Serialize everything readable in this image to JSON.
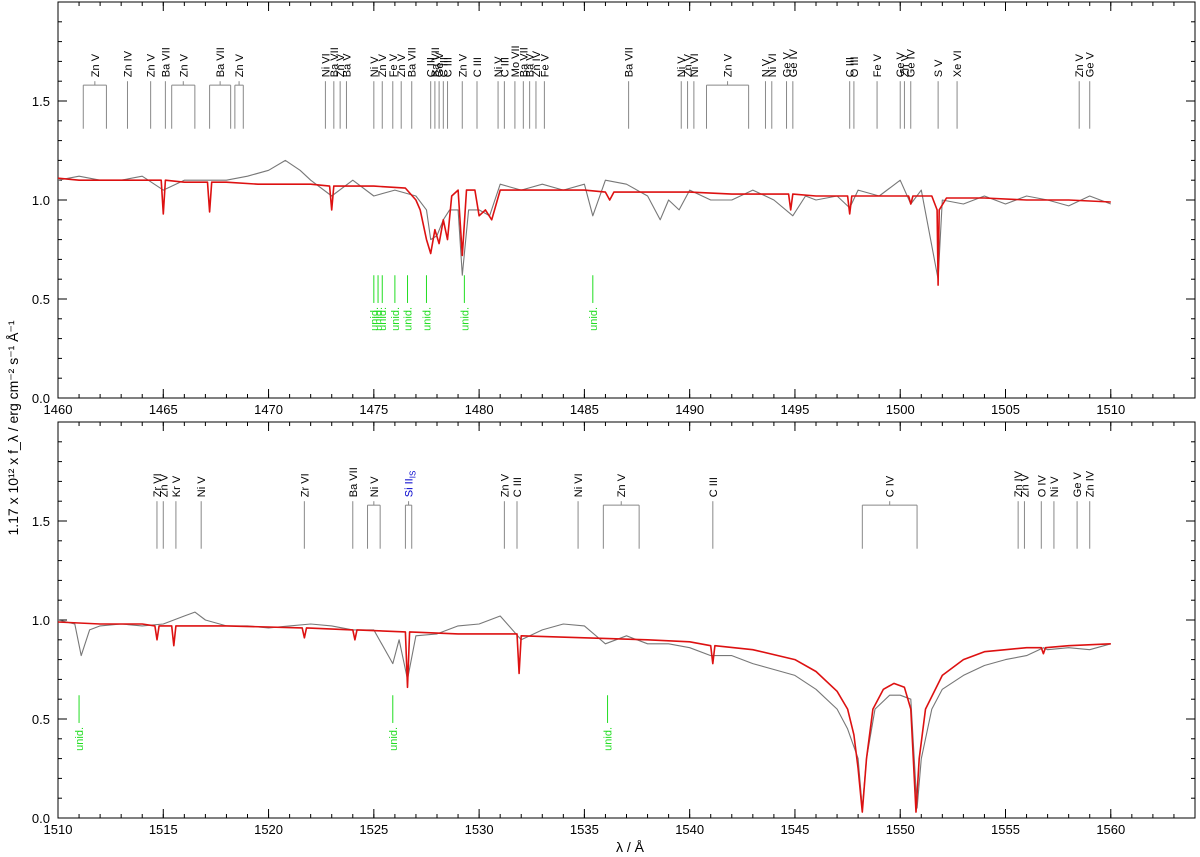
{
  "chart_data": [
    {
      "type": "line",
      "panel": "top",
      "xlim": [
        1460,
        1514
      ],
      "ylim": [
        0.0,
        2.0
      ],
      "xticks": [
        1460,
        1465,
        1470,
        1475,
        1480,
        1485,
        1490,
        1495,
        1500,
        1505,
        1510
      ],
      "yticks": [
        0.0,
        0.5,
        1.0,
        1.5
      ],
      "xticks_minor_step": 1,
      "yticks_minor_step": 0.1,
      "series": [
        {
          "role": "observed",
          "color": "#777777",
          "x": [
            1460,
            1461,
            1462,
            1463,
            1464,
            1465,
            1466,
            1467,
            1468,
            1469,
            1470,
            1470.8,
            1471.5,
            1472,
            1473,
            1474,
            1475,
            1476,
            1477,
            1477.5,
            1477.7,
            1478,
            1478.3,
            1478.6,
            1479,
            1479.2,
            1479.5,
            1480,
            1480.5,
            1481,
            1482,
            1483,
            1484,
            1485,
            1485.4,
            1486,
            1487,
            1488,
            1488.6,
            1489,
            1489.5,
            1490,
            1491,
            1492,
            1493,
            1494,
            1494.9,
            1495.5,
            1496,
            1497,
            1497.6,
            1498,
            1499,
            1500,
            1500.5,
            1501,
            1501.8,
            1502,
            1503,
            1504,
            1505,
            1506,
            1507,
            1508,
            1509,
            1510
          ],
          "y": [
            1.1,
            1.12,
            1.1,
            1.1,
            1.12,
            1.05,
            1.1,
            1.1,
            1.1,
            1.12,
            1.15,
            1.2,
            1.15,
            1.1,
            1.02,
            1.1,
            1.02,
            1.05,
            1.02,
            0.95,
            0.8,
            0.82,
            0.9,
            0.95,
            0.95,
            0.62,
            0.95,
            0.95,
            0.92,
            1.08,
            1.05,
            1.08,
            1.05,
            1.08,
            0.92,
            1.1,
            1.08,
            1.02,
            0.9,
            1.0,
            0.95,
            1.05,
            1.0,
            1.0,
            1.05,
            1.0,
            0.92,
            1.02,
            1.0,
            1.02,
            0.96,
            1.05,
            1.02,
            1.1,
            0.98,
            1.05,
            0.6,
            1.0,
            0.98,
            1.02,
            0.98,
            1.02,
            1.0,
            0.97,
            1.02,
            0.98
          ]
        },
        {
          "role": "model",
          "color": "#dd1111",
          "x": [
            1460,
            1461,
            1463,
            1464.9,
            1465,
            1465.1,
            1466,
            1467.1,
            1467.2,
            1467.3,
            1468,
            1469.5,
            1470,
            1472,
            1472.9,
            1473,
            1473.1,
            1475,
            1476.5,
            1477,
            1477.2,
            1477.5,
            1477.7,
            1477.9,
            1478.1,
            1478.3,
            1478.5,
            1478.7,
            1479,
            1479.2,
            1479.4,
            1479.8,
            1480,
            1480.3,
            1480.6,
            1481,
            1482,
            1484,
            1485,
            1486,
            1486.2,
            1486.4,
            1488,
            1490,
            1492,
            1494.7,
            1494.8,
            1494.9,
            1496,
            1497.5,
            1497.6,
            1497.7,
            1499,
            1500.4,
            1500.5,
            1500.6,
            1501.5,
            1501.75,
            1501.8,
            1501.85,
            1502.2,
            1504,
            1506,
            1508,
            1510
          ],
          "y": [
            1.11,
            1.1,
            1.1,
            1.1,
            0.93,
            1.1,
            1.09,
            1.09,
            0.94,
            1.09,
            1.09,
            1.08,
            1.08,
            1.08,
            1.07,
            0.95,
            1.07,
            1.07,
            1.06,
            1.0,
            0.95,
            0.8,
            0.73,
            0.85,
            0.78,
            0.9,
            0.8,
            1.02,
            1.05,
            0.72,
            1.05,
            1.05,
            0.92,
            0.95,
            0.9,
            1.05,
            1.05,
            1.05,
            1.05,
            1.04,
            1.0,
            1.04,
            1.04,
            1.04,
            1.03,
            1.03,
            0.95,
            1.03,
            1.02,
            1.02,
            0.93,
            1.02,
            1.02,
            1.02,
            0.98,
            1.02,
            1.02,
            0.95,
            0.57,
            0.95,
            1.01,
            1.01,
            1.0,
            1.0,
            0.99
          ]
        }
      ],
      "line_ids": [
        {
          "label": "Zn V",
          "x": [
            1461.2,
            1462.3
          ]
        },
        {
          "label": "Zn IV",
          "x": [
            1463.3
          ]
        },
        {
          "label": "Zn V",
          "x": [
            1464.4
          ]
        },
        {
          "label": "Ba VII",
          "x": [
            1465.1
          ]
        },
        {
          "label": "Zn V",
          "x": [
            1465.4,
            1466.5
          ]
        },
        {
          "label": "Ba VII",
          "x": [
            1467.2,
            1468.2
          ]
        },
        {
          "label": "Zn V",
          "x": [
            1468.4,
            1468.8
          ]
        },
        {
          "label": "Ni VI",
          "x": [
            1472.7
          ]
        },
        {
          "label": "Ba VII",
          "x": [
            1473.1
          ]
        },
        {
          "label": "Zn V",
          "x": [
            1473.4
          ]
        },
        {
          "label": "Ba V",
          "x": [
            1473.7
          ]
        },
        {
          "label": "Ni V",
          "x": [
            1475.0
          ]
        },
        {
          "label": "Zn V",
          "x": [
            1475.4
          ]
        },
        {
          "label": "Fe V",
          "x": [
            1475.9
          ]
        },
        {
          "label": "Zn V",
          "x": [
            1476.3
          ]
        },
        {
          "label": "Ba VII",
          "x": [
            1476.8
          ]
        },
        {
          "label": "C III",
          "x": [
            1477.7
          ]
        },
        {
          "label": "Ba VII",
          "x": [
            1477.9
          ]
        },
        {
          "label": "Ge V",
          "x": [
            1478.1
          ]
        },
        {
          "label": "C III",
          "x": [
            1478.3
          ]
        },
        {
          "label": "C III",
          "x": [
            1478.5
          ]
        },
        {
          "label": "Zn V",
          "x": [
            1479.2
          ]
        },
        {
          "label": "C III",
          "x": [
            1479.9
          ]
        },
        {
          "label": "Ni V",
          "x": [
            1480.9
          ]
        },
        {
          "label": "C III",
          "x": [
            1481.2
          ]
        },
        {
          "label": "Mo VII",
          "x": [
            1481.7
          ]
        },
        {
          "label": "Ba VII",
          "x": [
            1482.1
          ]
        },
        {
          "label": "Ba V",
          "x": [
            1482.4
          ]
        },
        {
          "label": "Zn IV",
          "x": [
            1482.7
          ]
        },
        {
          "label": "Fe V",
          "x": [
            1483.1
          ]
        },
        {
          "label": "Ba VII",
          "x": [
            1487.1
          ]
        },
        {
          "label": "Ni V",
          "x": [
            1489.6
          ]
        },
        {
          "label": "Zn V",
          "x": [
            1489.9
          ]
        },
        {
          "label": "Ni VI",
          "x": [
            1490.2
          ]
        },
        {
          "label": "Zn V",
          "x": [
            1490.8,
            1492.8
          ]
        },
        {
          "label": "N V",
          "x": [
            1493.6
          ]
        },
        {
          "label": "Ni VI",
          "x": [
            1493.9
          ]
        },
        {
          "label": "Ge V",
          "x": [
            1494.6
          ]
        },
        {
          "label": "Ge IV",
          "x": [
            1494.9
          ]
        },
        {
          "label": "C III",
          "x": [
            1497.6
          ]
        },
        {
          "label": "O III",
          "x": [
            1497.8
          ]
        },
        {
          "label": "Fe V",
          "x": [
            1498.9
          ]
        },
        {
          "label": "Ge V",
          "x": [
            1500.0
          ]
        },
        {
          "label": "Zn V",
          "x": [
            1500.2
          ]
        },
        {
          "label": "Ge IV",
          "x": [
            1500.5
          ]
        },
        {
          "label": "S V",
          "x": [
            1501.8
          ]
        },
        {
          "label": "Xe VI",
          "x": [
            1502.7
          ]
        },
        {
          "label": "Zn V",
          "x": [
            1508.5
          ]
        },
        {
          "label": "Ge V",
          "x": [
            1509.0
          ]
        }
      ],
      "unid_ids": [
        {
          "label": "unid.",
          "x": 1475.0
        },
        {
          "label": "unid.",
          "x": 1475.2
        },
        {
          "label": "unid.",
          "x": 1475.4
        },
        {
          "label": "unid.",
          "x": 1476.0
        },
        {
          "label": "unid.",
          "x": 1476.6
        },
        {
          "label": "unid.",
          "x": 1477.5
        },
        {
          "label": "unid.",
          "x": 1479.3
        },
        {
          "label": "unid.",
          "x": 1485.4
        }
      ]
    },
    {
      "type": "line",
      "panel": "bottom",
      "xlim": [
        1510,
        1564
      ],
      "ylim": [
        0.0,
        2.0
      ],
      "xticks": [
        1510,
        1515,
        1520,
        1525,
        1530,
        1535,
        1540,
        1545,
        1550,
        1555,
        1560
      ],
      "yticks": [
        0.0,
        0.5,
        1.0,
        1.5
      ],
      "xticks_minor_step": 1,
      "yticks_minor_step": 0.1,
      "xlabel": "λ / Å",
      "ylabel": "1.17 x 10¹² x f_λ / erg cm⁻² s⁻¹ Å⁻¹",
      "series": [
        {
          "role": "observed",
          "color": "#777777",
          "x": [
            1510,
            1510.8,
            1511.1,
            1511.5,
            1512,
            1513,
            1514,
            1515,
            1516,
            1516.5,
            1517,
            1518,
            1519,
            1520,
            1521,
            1522,
            1523,
            1524,
            1525,
            1525.9,
            1526.2,
            1526.6,
            1527,
            1528,
            1529,
            1530,
            1531,
            1532,
            1533,
            1534,
            1535,
            1536,
            1537,
            1538,
            1539,
            1540,
            1541,
            1542,
            1543,
            1544,
            1545,
            1546,
            1547,
            1547.5,
            1548,
            1548.2,
            1548.4,
            1548.8,
            1549.5,
            1550,
            1550.5,
            1550.8,
            1551,
            1551.5,
            1552,
            1553,
            1554,
            1555,
            1556,
            1556.8,
            1557,
            1558,
            1559,
            1560
          ],
          "y": [
            1.0,
            0.98,
            0.82,
            0.95,
            0.97,
            0.98,
            0.97,
            0.98,
            1.02,
            1.04,
            1.0,
            0.97,
            0.97,
            0.96,
            0.97,
            0.98,
            0.97,
            0.95,
            0.95,
            0.78,
            0.9,
            0.7,
            0.92,
            0.93,
            0.97,
            0.98,
            1.02,
            0.9,
            0.95,
            0.98,
            0.97,
            0.88,
            0.92,
            0.88,
            0.88,
            0.86,
            0.82,
            0.82,
            0.78,
            0.75,
            0.72,
            0.65,
            0.55,
            0.45,
            0.3,
            0.05,
            0.3,
            0.55,
            0.62,
            0.62,
            0.6,
            0.05,
            0.3,
            0.55,
            0.65,
            0.72,
            0.77,
            0.8,
            0.82,
            0.86,
            0.85,
            0.86,
            0.85,
            0.88
          ]
        },
        {
          "role": "model",
          "color": "#dd1111",
          "x": [
            1510,
            1512,
            1514,
            1514.6,
            1514.7,
            1514.8,
            1515.4,
            1515.5,
            1515.6,
            1518,
            1521.6,
            1521.7,
            1521.8,
            1524,
            1524.1,
            1524.2,
            1526.5,
            1526.6,
            1526.7,
            1529,
            1531.8,
            1531.9,
            1532.0,
            1535,
            1538,
            1540,
            1541.0,
            1541.1,
            1541.2,
            1543,
            1545,
            1546,
            1547,
            1547.5,
            1547.8,
            1548.0,
            1548.2,
            1548.4,
            1548.7,
            1549.2,
            1549.7,
            1550.2,
            1550.5,
            1550.75,
            1550.9,
            1551.2,
            1552,
            1553,
            1554,
            1555,
            1556,
            1556.7,
            1556.8,
            1556.9,
            1558,
            1560
          ],
          "y": [
            0.99,
            0.98,
            0.98,
            0.97,
            0.9,
            0.97,
            0.97,
            0.87,
            0.97,
            0.97,
            0.96,
            0.91,
            0.96,
            0.95,
            0.9,
            0.95,
            0.94,
            0.66,
            0.94,
            0.93,
            0.93,
            0.73,
            0.92,
            0.91,
            0.9,
            0.89,
            0.87,
            0.78,
            0.87,
            0.85,
            0.8,
            0.74,
            0.64,
            0.55,
            0.42,
            0.25,
            0.03,
            0.3,
            0.55,
            0.65,
            0.68,
            0.66,
            0.55,
            0.03,
            0.3,
            0.55,
            0.72,
            0.8,
            0.84,
            0.85,
            0.86,
            0.86,
            0.83,
            0.86,
            0.87,
            0.88
          ]
        }
      ],
      "line_ids": [
        {
          "label": "Zr VI",
          "x": [
            1514.7
          ]
        },
        {
          "label": "Zn V",
          "x": [
            1515.0
          ]
        },
        {
          "label": "Kr V",
          "x": [
            1515.6
          ]
        },
        {
          "label": "Ni V",
          "x": [
            1516.8
          ]
        },
        {
          "label": "Zr VI",
          "x": [
            1521.7
          ]
        },
        {
          "label": "Ba VII",
          "x": [
            1524.0
          ]
        },
        {
          "label": "Ni V",
          "x": [
            1524.7,
            1525.3
          ]
        },
        {
          "label": "Si II",
          "sub": "IS",
          "color": "#0000cc",
          "x": [
            1526.5,
            1526.8
          ]
        },
        {
          "label": "Zn V",
          "x": [
            1531.2
          ]
        },
        {
          "label": "C III",
          "x": [
            1531.8
          ]
        },
        {
          "label": "Ni VI",
          "x": [
            1534.7
          ]
        },
        {
          "label": "Zn V",
          "x": [
            1535.9,
            1537.6
          ]
        },
        {
          "label": "C III",
          "x": [
            1541.1
          ]
        },
        {
          "label": "C IV",
          "x": [
            1548.2,
            1550.8
          ]
        },
        {
          "label": "Zn IV",
          "x": [
            1555.6
          ]
        },
        {
          "label": "Zn V",
          "x": [
            1555.9
          ]
        },
        {
          "label": "O IV",
          "x": [
            1556.7
          ]
        },
        {
          "label": "Ni V",
          "x": [
            1557.3
          ]
        },
        {
          "label": "Ge V",
          "x": [
            1558.4
          ]
        },
        {
          "label": "Zn IV",
          "x": [
            1559.0
          ]
        }
      ],
      "unid_ids": [
        {
          "label": "unid.",
          "x": 1511.0
        },
        {
          "label": "unid.",
          "x": 1525.9
        },
        {
          "label": "unid.",
          "x": 1536.1
        }
      ]
    }
  ]
}
